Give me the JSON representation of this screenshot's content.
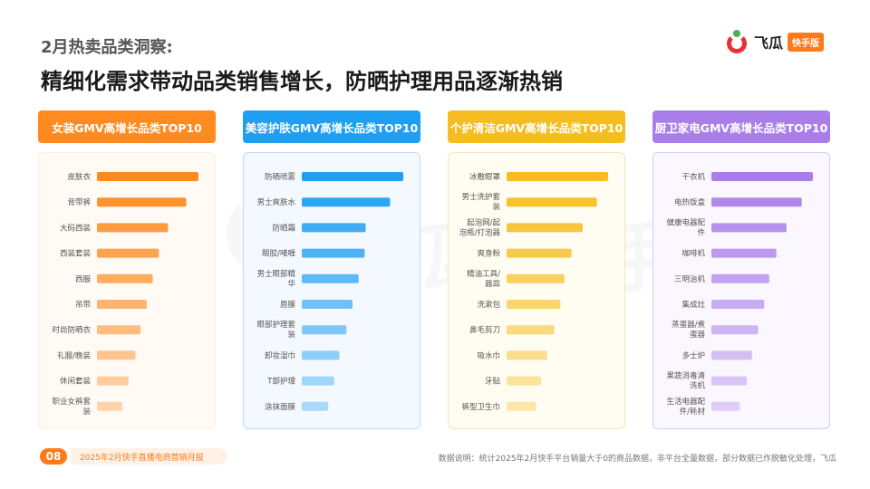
{
  "header": {
    "subtitle": "2月热卖品类洞察:",
    "title": "精细化需求带动品类销售增长，防晒护理用品逐渐热销"
  },
  "logo": {
    "name": "飞瓜",
    "badge": "快手版"
  },
  "watermark": {
    "text": "飞瓜 快手版"
  },
  "colors": {
    "orange": "#ff8a1f",
    "blue": "#1e9ff2",
    "yellow": "#f5bd1f",
    "purple": "#a97ee8"
  },
  "footer": {
    "page_number": "08",
    "report_name": "2025年2月快手直播电商营销月报",
    "note": "数据说明：统计2025年2月快手平台销量大于0的商品数据，非平台全量数据，部分数据已作脱敏化处理，飞瓜"
  },
  "chart_data": [
    {
      "type": "bar",
      "title": "女装GMV高增长品类TOP10",
      "color_key": "orange",
      "categories": [
        "皮肤衣",
        "背带裤",
        "大码西装",
        "西装套装",
        "西服",
        "吊带",
        "时尚防晒衣",
        "礼服/晚装",
        "休闲套装",
        "职业女裤套装"
      ],
      "values": [
        100,
        88,
        70,
        61,
        55,
        49,
        43,
        38,
        31,
        25
      ]
    },
    {
      "type": "bar",
      "title": "美容护肤GMV高增长品类TOP10",
      "color_key": "blue",
      "categories": [
        "防晒喷雾",
        "男士爽肤水",
        "防晒霜",
        "眼胶/啫喱",
        "男士眼部精华",
        "唇膜",
        "眼部护理套装",
        "卸妆湿巾",
        "T部护理",
        "涂抹面膜"
      ],
      "values": [
        100,
        87,
        63,
        62,
        56,
        50,
        44,
        37,
        32,
        26
      ]
    },
    {
      "type": "bar",
      "title": "个护清洁GMV高增长品类TOP10",
      "color_key": "yellow",
      "categories": [
        "冰敷眼罩",
        "男士洗护套装",
        "起泡网/起泡瓶/打泡器",
        "爽身粉",
        "精油工具/器皿",
        "洗漱包",
        "鼻毛剪刀",
        "吸水巾",
        "牙贴",
        "裤型卫生巾"
      ],
      "values": [
        100,
        89,
        75,
        64,
        57,
        53,
        47,
        40,
        34,
        29
      ]
    },
    {
      "type": "bar",
      "title": "厨卫家电GMV高增长品类TOP10",
      "color_key": "purple",
      "categories": [
        "干衣机",
        "电热饭盒",
        "健康电器配件",
        "咖啡机",
        "三明治机",
        "集成灶",
        "蒸蛋器/煮蛋器",
        "多士炉",
        "果蔬消毒清洗机",
        "生活电器配件/耗材"
      ],
      "values": [
        100,
        89,
        74,
        64,
        57,
        52,
        46,
        40,
        35,
        28
      ]
    }
  ]
}
